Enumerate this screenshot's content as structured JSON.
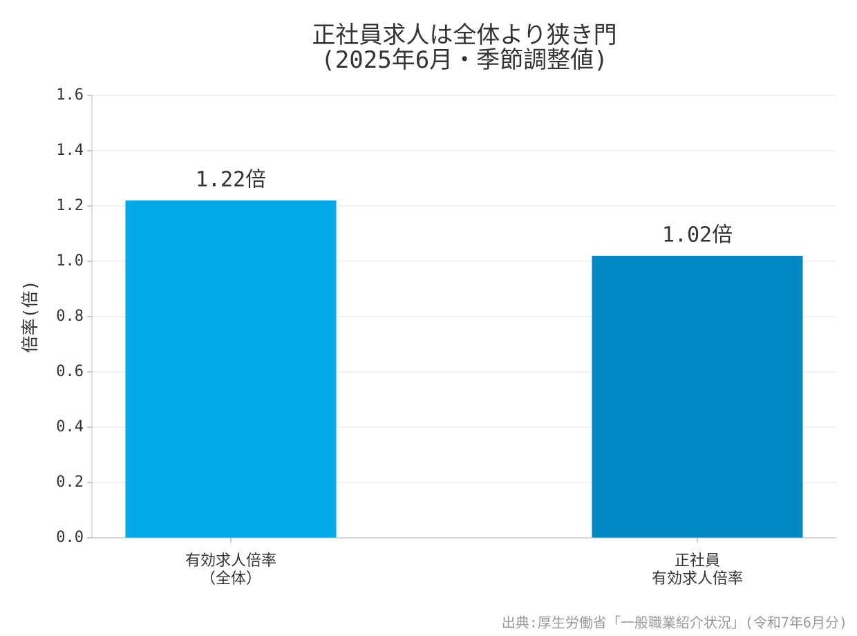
{
  "chart_data": {
    "type": "bar",
    "title": "正社員求人は全体より狭き門\n(2025年6月・季節調整値)",
    "y_label": "倍率(倍)",
    "categories": [
      "有効求人倍率\n（全体）",
      "正社員\n有効求人倍率"
    ],
    "values": [
      1.22,
      1.02
    ],
    "value_labels": [
      "1.22倍",
      "1.02倍"
    ],
    "colors": [
      "#00a9e8",
      "#0088c2"
    ],
    "ylim": [
      0,
      1.6
    ],
    "yticks": [
      {
        "value": 0,
        "label": "0.0"
      },
      0.2,
      0.4,
      0.6,
      0.8,
      {
        "value": 1,
        "label": "1.0"
      },
      1.2,
      1.4,
      1.6
    ],
    "grid": true,
    "source": "出典:厚生労働省「一般職業紹介状況」(令和7年6月分)"
  }
}
